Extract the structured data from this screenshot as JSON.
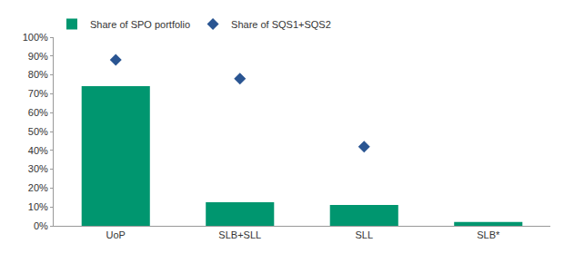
{
  "chart_data": {
    "type": "bar",
    "categories": [
      "UoP",
      "SLB+SLL",
      "SLL",
      "SLB*"
    ],
    "series": [
      {
        "name": "Share of SPO portfolio",
        "type": "bar",
        "color": "#00966f",
        "values": [
          74,
          12.5,
          11,
          2
        ]
      },
      {
        "name": "Share of SQS1+SQS2",
        "type": "scatter",
        "marker": "diamond",
        "color": "#2a5592",
        "values": [
          88,
          78,
          42,
          null
        ]
      }
    ],
    "ylim": [
      0,
      100
    ],
    "yticks": [
      {
        "value": 0,
        "label": "0%"
      },
      {
        "value": 10,
        "label": "10%"
      },
      {
        "value": 20,
        "label": "20%"
      },
      {
        "value": 30,
        "label": "30%"
      },
      {
        "value": 40,
        "label": "40%"
      },
      {
        "value": 50,
        "label": "50%"
      },
      {
        "value": 60,
        "label": "60%"
      },
      {
        "value": 70,
        "label": "70%"
      },
      {
        "value": 80,
        "label": "80%"
      },
      {
        "value": 90,
        "label": "90%"
      },
      {
        "value": 100,
        "label": "100%"
      }
    ],
    "grid": false,
    "legend": "top"
  }
}
